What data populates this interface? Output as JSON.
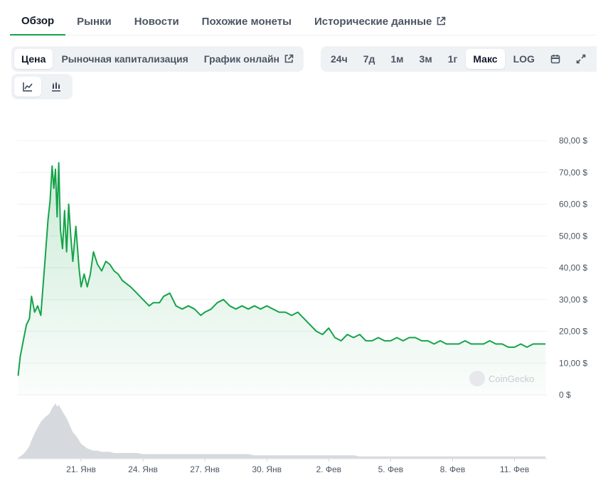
{
  "tabs": [
    {
      "label": "Обзор",
      "active": true
    },
    {
      "label": "Рынки"
    },
    {
      "label": "Новости"
    },
    {
      "label": "Похожие монеты"
    },
    {
      "label": "Исторические данные",
      "external": true
    }
  ],
  "metric_buttons": [
    {
      "label": "Цена",
      "active": true
    },
    {
      "label": "Рыночная капитализация"
    },
    {
      "label": "График онлайн",
      "external": true
    }
  ],
  "range_buttons": [
    {
      "label": "24ч"
    },
    {
      "label": "7д"
    },
    {
      "label": "1м"
    },
    {
      "label": "3м"
    },
    {
      "label": "1г"
    },
    {
      "label": "Макс",
      "active": true
    },
    {
      "label": "LOG"
    }
  ],
  "range_icons": [
    "calendar-icon",
    "expand-icon"
  ],
  "chart_type_icons": [
    {
      "name": "line-chart-icon",
      "active": true
    },
    {
      "name": "candlestick-chart-icon"
    }
  ],
  "watermark": "CoinGecko",
  "colors": {
    "line": "#16a34a",
    "fill": "#16a34a",
    "volume": "#d6d9dd",
    "accent": "#16a34a"
  },
  "chart_data": {
    "type": "area",
    "ylim": [
      0,
      80
    ],
    "y_ticks": [
      {
        "value": 80,
        "label": "80,00 $"
      },
      {
        "value": 70,
        "label": "70,00 $"
      },
      {
        "value": 60,
        "label": "60,00 $"
      },
      {
        "value": 50,
        "label": "50,00 $"
      },
      {
        "value": 40,
        "label": "40,00 $"
      },
      {
        "value": 30,
        "label": "30,00 $"
      },
      {
        "value": 20,
        "label": "20,00 $"
      },
      {
        "value": 10,
        "label": "10,00 $"
      },
      {
        "value": 0,
        "label": "0 $"
      }
    ],
    "xlim": [
      17.9,
      43.6
    ],
    "x_ticks": [
      {
        "value": 21,
        "label": "21. Янв"
      },
      {
        "value": 24,
        "label": "24. Янв"
      },
      {
        "value": 27,
        "label": "27. Янв"
      },
      {
        "value": 30,
        "label": "30. Янв"
      },
      {
        "value": 33,
        "label": "2. Фев"
      },
      {
        "value": 36,
        "label": "5. Фев"
      },
      {
        "value": 39,
        "label": "8. Фев"
      },
      {
        "value": 42,
        "label": "11. Фев"
      }
    ],
    "x": [
      17.95,
      18.05,
      18.2,
      18.35,
      18.5,
      18.6,
      18.75,
      18.9,
      19.05,
      19.25,
      19.4,
      19.5,
      19.6,
      19.68,
      19.76,
      19.84,
      19.92,
      20.0,
      20.1,
      20.2,
      20.3,
      20.4,
      20.5,
      20.6,
      20.75,
      20.9,
      21.0,
      21.15,
      21.3,
      21.45,
      21.6,
      21.8,
      22.0,
      22.2,
      22.4,
      22.6,
      22.8,
      23.0,
      23.2,
      23.4,
      23.7,
      24.0,
      24.3,
      24.5,
      24.8,
      25.0,
      25.3,
      25.6,
      25.9,
      26.2,
      26.5,
      26.8,
      27.0,
      27.3,
      27.6,
      27.9,
      28.2,
      28.5,
      28.8,
      29.1,
      29.4,
      29.7,
      30.0,
      30.3,
      30.6,
      30.9,
      31.2,
      31.5,
      31.8,
      32.1,
      32.4,
      32.7,
      33.0,
      33.3,
      33.6,
      33.9,
      34.2,
      34.5,
      34.8,
      35.1,
      35.4,
      35.7,
      36.0,
      36.3,
      36.6,
      36.9,
      37.2,
      37.5,
      37.8,
      38.1,
      38.4,
      38.7,
      39.0,
      39.3,
      39.6,
      39.9,
      40.2,
      40.5,
      40.8,
      41.1,
      41.4,
      41.7,
      42.0,
      42.3,
      42.6,
      42.9,
      43.2,
      43.5
    ],
    "y": [
      6,
      12,
      17,
      22,
      24,
      31,
      26,
      28,
      25,
      42,
      55,
      61,
      72,
      65,
      71,
      56,
      73,
      52,
      46,
      58,
      45,
      60,
      50,
      42,
      53,
      40,
      34,
      38,
      34,
      38,
      45,
      41,
      39,
      42,
      41,
      39,
      38,
      36,
      35,
      34,
      32,
      30,
      28,
      29,
      29,
      31,
      32,
      28,
      27,
      28,
      27,
      25,
      26,
      27,
      29,
      30,
      28,
      27,
      28,
      27,
      28,
      27,
      28,
      27,
      26,
      26,
      25,
      26,
      24,
      22,
      20,
      19,
      21,
      18,
      17,
      19,
      18,
      19,
      17,
      17,
      18,
      17,
      17,
      18,
      17,
      18,
      18,
      17,
      17,
      16,
      17,
      16,
      16,
      16,
      17,
      16,
      16,
      16,
      17,
      16,
      16,
      15,
      15,
      16,
      15,
      16,
      16,
      16
    ],
    "volume": [
      1,
      2,
      4,
      7,
      11,
      16,
      22,
      27,
      32,
      36,
      38,
      40,
      44,
      46,
      48,
      45,
      47,
      44,
      41,
      38,
      35,
      31,
      27,
      23,
      20,
      16,
      13,
      11,
      9,
      8,
      7,
      7,
      6,
      6,
      6,
      5,
      5,
      5,
      5,
      5,
      5,
      4,
      4,
      4,
      4,
      4,
      4,
      4,
      4,
      4,
      4,
      4,
      4,
      4,
      4,
      4,
      4,
      4,
      4,
      4,
      3,
      3,
      3,
      3,
      3,
      3,
      3,
      3,
      3,
      3,
      3,
      3,
      3,
      3,
      3,
      3,
      3,
      2,
      2,
      2,
      2,
      2,
      2,
      2,
      2,
      2,
      2,
      2,
      2,
      2,
      2,
      2,
      2,
      2,
      2,
      2,
      2,
      2,
      2,
      2,
      2,
      2,
      2,
      2,
      2,
      2,
      2,
      2
    ]
  }
}
